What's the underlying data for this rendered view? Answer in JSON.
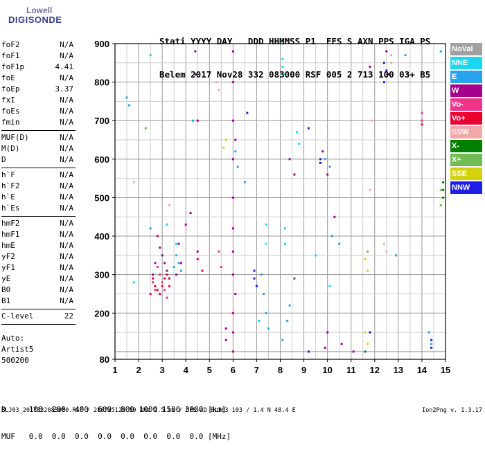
{
  "logo": {
    "line1": "Lowell",
    "line2": "DIGISONDE"
  },
  "header": {
    "row1": "Stati YYYY DAY   DDD HHMMSS P1  FFS S AXN PPS IGA PS",
    "row2": "Belem 2017 Nov28 332 083000 RSF 005 2 713 100 03+ B5"
  },
  "params": [
    {
      "group": [
        {
          "label": "foF2",
          "value": "N/A"
        },
        {
          "label": "foF1",
          "value": "N/A"
        },
        {
          "label": "foF1p",
          "value": "4.41"
        },
        {
          "label": "foE",
          "value": "N/A"
        },
        {
          "label": "foEp",
          "value": "3.37"
        },
        {
          "label": "fxI",
          "value": "N/A"
        },
        {
          "label": "foEs",
          "value": "N/A"
        },
        {
          "label": "fmin",
          "value": "N/A"
        }
      ]
    },
    {
      "group": [
        {
          "label": "MUF(D)",
          "value": "N/A"
        },
        {
          "label": "M(D)",
          "value": "N/A"
        },
        {
          "label": "D",
          "value": "N/A"
        }
      ]
    },
    {
      "group": [
        {
          "label": "h`F",
          "value": "N/A"
        },
        {
          "label": "h`F2",
          "value": "N/A"
        },
        {
          "label": "h`E",
          "value": "N/A"
        },
        {
          "label": "h`Es",
          "value": "N/A"
        }
      ]
    },
    {
      "group": [
        {
          "label": "hmF2",
          "value": "N/A"
        },
        {
          "label": "hmF1",
          "value": "N/A"
        },
        {
          "label": "hmE",
          "value": "N/A"
        },
        {
          "label": "yF2",
          "value": "N/A"
        },
        {
          "label": "yF1",
          "value": "N/A"
        },
        {
          "label": "yE",
          "value": "N/A"
        },
        {
          "label": "B0",
          "value": "N/A"
        },
        {
          "label": "B1",
          "value": "N/A"
        }
      ]
    },
    {
      "group": [
        {
          "label": "C-level",
          "value": "22"
        }
      ]
    }
  ],
  "auto": {
    "line1": "Auto:",
    "line2": "Artist5",
    "line3": "500200"
  },
  "bottom_table": {
    "row1": "D     100  200  400  600  800 1000 1500 3000 [km]",
    "row2": "MUF   0.0  0.0  0.0  0.0  0.0  0.0  0.0  0.0 [MHz]"
  },
  "footer": {
    "left": "BLJ03_2017332083000.RSF / 280fx512h 50 kHz 2.5 km / DPS-4D BLJ03 103 / 1.4 N 48.4 E",
    "right": "Ion2Png v. 1.3.17"
  },
  "legend": [
    {
      "label": "NoVal",
      "color": "#a0a0a0"
    },
    {
      "label": "NNE",
      "color": "#19d7f0"
    },
    {
      "label": "E",
      "color": "#2aa3ee"
    },
    {
      "label": "W",
      "color": "#a4008c"
    },
    {
      "label": "Vo-",
      "color": "#f0368c"
    },
    {
      "label": "Vo+",
      "color": "#ec0030"
    },
    {
      "label": "SSW",
      "color": "#f2a8a8"
    },
    {
      "label": "X-",
      "color": "#008000"
    },
    {
      "label": "X+",
      "color": "#72ba52"
    },
    {
      "label": "SSE",
      "color": "#d2d20e"
    },
    {
      "label": "NNW",
      "color": "#1e1ee6"
    }
  ],
  "chart_data": {
    "type": "scatter",
    "xlim": [
      1,
      15
    ],
    "ylim": [
      80,
      900
    ],
    "xticks": [
      1,
      2,
      3,
      4,
      5,
      6,
      7,
      8,
      9,
      10,
      11,
      12,
      13,
      14,
      15
    ],
    "yticks": [
      80,
      200,
      300,
      400,
      500,
      600,
      700,
      800,
      900
    ],
    "grid": true,
    "series": [
      {
        "name": "NNE",
        "color": "#19d7f0",
        "points": [
          [
            8.1,
            900
          ],
          [
            8.1,
            860
          ],
          [
            8.1,
            840
          ],
          [
            8.2,
            820
          ],
          [
            7.4,
            430
          ],
          [
            7.4,
            380
          ],
          [
            8.2,
            420
          ],
          [
            8.2,
            380
          ],
          [
            8.8,
            640
          ],
          [
            8.7,
            670
          ],
          [
            10.1,
            270
          ],
          [
            9.5,
            350
          ],
          [
            2.5,
            870
          ],
          [
            3.2,
            430
          ],
          [
            3.6,
            380
          ],
          [
            1.8,
            280
          ],
          [
            7.1,
            180
          ]
        ]
      },
      {
        "name": "E",
        "color": "#2aa3ee",
        "points": [
          [
            3.6,
            350
          ],
          [
            3.7,
            330
          ],
          [
            3.8,
            310
          ],
          [
            3.5,
            320
          ],
          [
            6.1,
            620
          ],
          [
            6.2,
            580
          ],
          [
            7.2,
            300
          ],
          [
            7.3,
            250
          ],
          [
            7.4,
            200
          ],
          [
            7.5,
            160
          ],
          [
            8.1,
            130
          ],
          [
            8.3,
            180
          ],
          [
            8.4,
            220
          ],
          [
            9.9,
            600
          ],
          [
            10.1,
            580
          ],
          [
            10.2,
            400
          ],
          [
            10.5,
            380
          ],
          [
            13.3,
            870
          ],
          [
            13.4,
            820
          ],
          [
            14.3,
            150
          ],
          [
            14.4,
            120
          ],
          [
            12.9,
            350
          ],
          [
            14.8,
            880
          ],
          [
            6.5,
            540
          ],
          [
            4.3,
            700
          ],
          [
            1.5,
            760
          ],
          [
            1.6,
            740
          ],
          [
            2.5,
            420
          ]
        ]
      },
      {
        "name": "W",
        "color": "#a4008c",
        "points": [
          [
            6.0,
            880
          ],
          [
            6.0,
            800
          ],
          [
            6.0,
            700
          ],
          [
            6.1,
            650
          ],
          [
            6.0,
            600
          ],
          [
            6.0,
            500
          ],
          [
            6.0,
            420
          ],
          [
            6.0,
            360
          ],
          [
            6.0,
            300
          ],
          [
            6.1,
            250
          ],
          [
            6.0,
            200
          ],
          [
            6.0,
            150
          ],
          [
            6.0,
            100
          ],
          [
            5.7,
            160
          ],
          [
            5.7,
            130
          ],
          [
            4.4,
            880
          ],
          [
            4.4,
            820
          ],
          [
            4.5,
            700
          ],
          [
            3.7,
            380
          ],
          [
            3.8,
            330
          ],
          [
            3.6,
            300
          ],
          [
            2.8,
            400
          ],
          [
            2.9,
            370
          ],
          [
            3.0,
            350
          ],
          [
            3.1,
            330
          ],
          [
            3.2,
            310
          ],
          [
            3.3,
            290
          ],
          [
            2.7,
            330
          ],
          [
            2.6,
            300
          ],
          [
            8.4,
            600
          ],
          [
            8.6,
            560
          ],
          [
            9.8,
            620
          ],
          [
            10.0,
            560
          ],
          [
            10.3,
            450
          ],
          [
            11.8,
            840
          ],
          [
            12.6,
            820
          ],
          [
            12.5,
            880
          ],
          [
            9.9,
            110
          ],
          [
            10.0,
            150
          ],
          [
            10.6,
            120
          ],
          [
            11.1,
            100
          ],
          [
            4.2,
            460
          ],
          [
            4.0,
            430
          ],
          [
            4.5,
            360
          ]
        ]
      },
      {
        "name": "Vo-",
        "color": "#f0368c",
        "points": [
          [
            2.8,
            320
          ],
          [
            2.9,
            300
          ],
          [
            3.0,
            280
          ],
          [
            3.1,
            260
          ],
          [
            3.2,
            240
          ],
          [
            2.7,
            260
          ],
          [
            2.6,
            280
          ],
          [
            5.4,
            360
          ],
          [
            5.5,
            320
          ],
          [
            14.0,
            720
          ],
          [
            14.0,
            700
          ]
        ]
      },
      {
        "name": "Vo+",
        "color": "#ec0030",
        "points": [
          [
            2.6,
            290
          ],
          [
            2.7,
            270
          ],
          [
            2.8,
            260
          ],
          [
            2.9,
            250
          ],
          [
            3.0,
            270
          ],
          [
            3.1,
            290
          ],
          [
            3.2,
            300
          ],
          [
            3.3,
            270
          ],
          [
            2.5,
            250
          ],
          [
            4.5,
            340
          ],
          [
            4.7,
            310
          ],
          [
            14.0,
            690
          ]
        ]
      },
      {
        "name": "SSW",
        "color": "#f2a8a8",
        "points": [
          [
            5.3,
            800
          ],
          [
            5.4,
            780
          ],
          [
            12.7,
            870
          ],
          [
            12.7,
            850
          ],
          [
            12.4,
            380
          ],
          [
            12.5,
            360
          ],
          [
            11.9,
            700
          ],
          [
            11.8,
            520
          ],
          [
            1.8,
            540
          ],
          [
            3.3,
            480
          ]
        ]
      },
      {
        "name": "X-",
        "color": "#008000",
        "points": [
          [
            14.9,
            540
          ],
          [
            14.9,
            520
          ],
          [
            14.9,
            500
          ],
          [
            8.6,
            290
          ],
          [
            11.6,
            100
          ]
        ]
      },
      {
        "name": "X+",
        "color": "#72ba52",
        "points": [
          [
            14.8,
            520
          ],
          [
            14.8,
            480
          ],
          [
            2.3,
            680
          ],
          [
            11.7,
            360
          ]
        ]
      },
      {
        "name": "SSE",
        "color": "#d2d20e",
        "points": [
          [
            5.7,
            650
          ],
          [
            5.6,
            630
          ],
          [
            11.6,
            340
          ],
          [
            11.7,
            310
          ],
          [
            11.6,
            150
          ],
          [
            11.7,
            120
          ]
        ]
      },
      {
        "name": "NNW",
        "color": "#1e1ee6",
        "points": [
          [
            12.4,
            850
          ],
          [
            12.5,
            830
          ],
          [
            12.4,
            800
          ],
          [
            9.2,
            680
          ],
          [
            9.7,
            600
          ],
          [
            9.7,
            590
          ],
          [
            6.9,
            310
          ],
          [
            6.9,
            290
          ],
          [
            7.0,
            270
          ],
          [
            14.4,
            130
          ],
          [
            14.4,
            110
          ],
          [
            9.2,
            100
          ],
          [
            11.8,
            150
          ],
          [
            6.6,
            720
          ]
        ]
      }
    ]
  }
}
